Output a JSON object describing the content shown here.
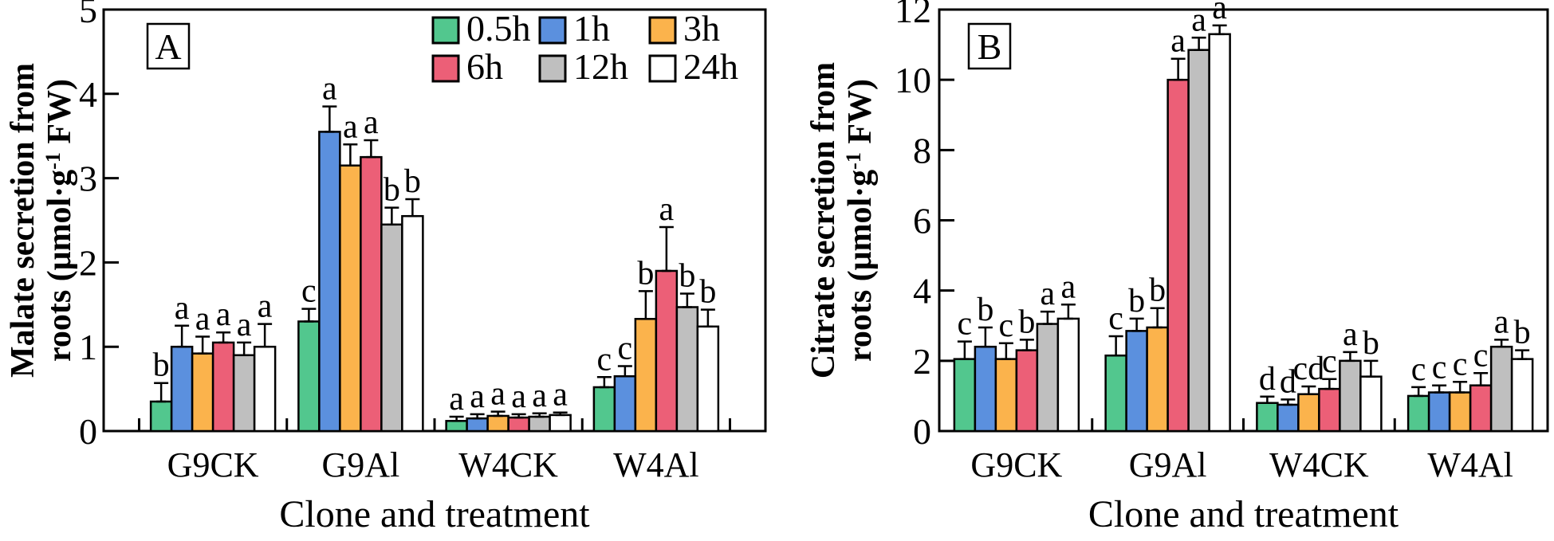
{
  "figure": {
    "background": "#FFFFFF",
    "axis_color": "#000000",
    "xlabel": "Clone and treatment"
  },
  "legend": {
    "location": "top of panel A",
    "rows": 2,
    "columns": 3,
    "entries": [
      {
        "label": "0.5h",
        "color": "#52C78E"
      },
      {
        "label": "1h",
        "color": "#5B90DE"
      },
      {
        "label": "3h",
        "color": "#FBB34C"
      },
      {
        "label": "6h",
        "color": "#EC5F77"
      },
      {
        "label": "12h",
        "color": "#BFBFBF"
      },
      {
        "label": "24h",
        "color": "#FFFFFF"
      }
    ]
  },
  "chart_data": [
    {
      "type": "bar",
      "panel": "A",
      "title": "",
      "ylabel_lines": [
        "Malate secretion from",
        "roots (μmol·g^-1^ FW)"
      ],
      "xlabel": "Clone and treatment",
      "ylim": [
        0,
        5
      ],
      "yticks": [
        0,
        1,
        2,
        3,
        4,
        5
      ],
      "grid": false,
      "show_legend": true,
      "categories": [
        "G9CK",
        "G9Al",
        "W4CK",
        "W4Al"
      ],
      "series": [
        {
          "name": "0.5h",
          "color": "#52C78E",
          "values": [
            0.35,
            1.3,
            0.12,
            0.52
          ],
          "errors": [
            0.22,
            0.15,
            0.05,
            0.12
          ],
          "letters": [
            "b",
            "c",
            "a",
            "c"
          ]
        },
        {
          "name": "1h",
          "color": "#5B90DE",
          "values": [
            1.0,
            3.55,
            0.15,
            0.65
          ],
          "errors": [
            0.25,
            0.3,
            0.05,
            0.12
          ],
          "letters": [
            "a",
            "a",
            "a",
            "c"
          ]
        },
        {
          "name": "3h",
          "color": "#FBB34C",
          "values": [
            0.92,
            3.15,
            0.18,
            1.33
          ],
          "errors": [
            0.2,
            0.25,
            0.05,
            0.33
          ],
          "letters": [
            "a",
            "a",
            "a",
            "b"
          ]
        },
        {
          "name": "6h",
          "color": "#EC5F77",
          "values": [
            1.05,
            3.25,
            0.16,
            1.9
          ],
          "errors": [
            0.12,
            0.2,
            0.04,
            0.52
          ],
          "letters": [
            "a",
            "a",
            "a",
            "a"
          ]
        },
        {
          "name": "12h",
          "color": "#BFBFBF",
          "values": [
            0.9,
            2.45,
            0.17,
            1.47
          ],
          "errors": [
            0.15,
            0.2,
            0.04,
            0.16
          ],
          "letters": [
            "a",
            "b",
            "a",
            "b"
          ]
        },
        {
          "name": "24h",
          "color": "#FFFFFF",
          "values": [
            1.0,
            2.55,
            0.19,
            1.24
          ],
          "errors": [
            0.27,
            0.2,
            0.03,
            0.2
          ],
          "letters": [
            "a",
            "b",
            "a",
            "b"
          ]
        }
      ]
    },
    {
      "type": "bar",
      "panel": "B",
      "title": "",
      "ylabel_lines": [
        "Citrate secretion from",
        "roots  (μmol·g^-1^ FW)"
      ],
      "xlabel": "Clone and treatment",
      "ylim": [
        0,
        12
      ],
      "yticks": [
        0,
        2,
        4,
        6,
        8,
        10,
        12
      ],
      "grid": false,
      "show_legend": false,
      "categories": [
        "G9CK",
        "G9Al",
        "W4CK",
        "W4Al"
      ],
      "series": [
        {
          "name": "0.5h",
          "color": "#52C78E",
          "values": [
            2.05,
            2.15,
            0.8,
            1.0
          ],
          "errors": [
            0.5,
            0.55,
            0.18,
            0.25
          ],
          "letters": [
            "c",
            "c",
            "d",
            "c"
          ]
        },
        {
          "name": "1h",
          "color": "#5B90DE",
          "values": [
            2.4,
            2.85,
            0.75,
            1.1
          ],
          "errors": [
            0.55,
            0.35,
            0.15,
            0.2
          ],
          "letters": [
            "b",
            "b",
            "d",
            "c"
          ]
        },
        {
          "name": "3h",
          "color": "#FBB34C",
          "values": [
            2.05,
            2.95,
            1.05,
            1.1
          ],
          "errors": [
            0.45,
            0.55,
            0.22,
            0.3
          ],
          "letters": [
            "c",
            "b",
            "cd",
            "c"
          ]
        },
        {
          "name": "6h",
          "color": "#EC5F77",
          "values": [
            2.3,
            10.0,
            1.2,
            1.3
          ],
          "errors": [
            0.3,
            0.6,
            0.28,
            0.35
          ],
          "letters": [
            "b",
            "a",
            "c",
            "c"
          ]
        },
        {
          "name": "12h",
          "color": "#BFBFBF",
          "values": [
            3.05,
            10.85,
            2.0,
            2.4
          ],
          "errors": [
            0.35,
            0.35,
            0.25,
            0.2
          ],
          "letters": [
            "a",
            "a",
            "a",
            "a"
          ]
        },
        {
          "name": "24h",
          "color": "#FFFFFF",
          "values": [
            3.2,
            11.3,
            1.55,
            2.05
          ],
          "errors": [
            0.4,
            0.25,
            0.45,
            0.25
          ],
          "letters": [
            "a",
            "a",
            "b",
            "b"
          ]
        }
      ]
    }
  ]
}
